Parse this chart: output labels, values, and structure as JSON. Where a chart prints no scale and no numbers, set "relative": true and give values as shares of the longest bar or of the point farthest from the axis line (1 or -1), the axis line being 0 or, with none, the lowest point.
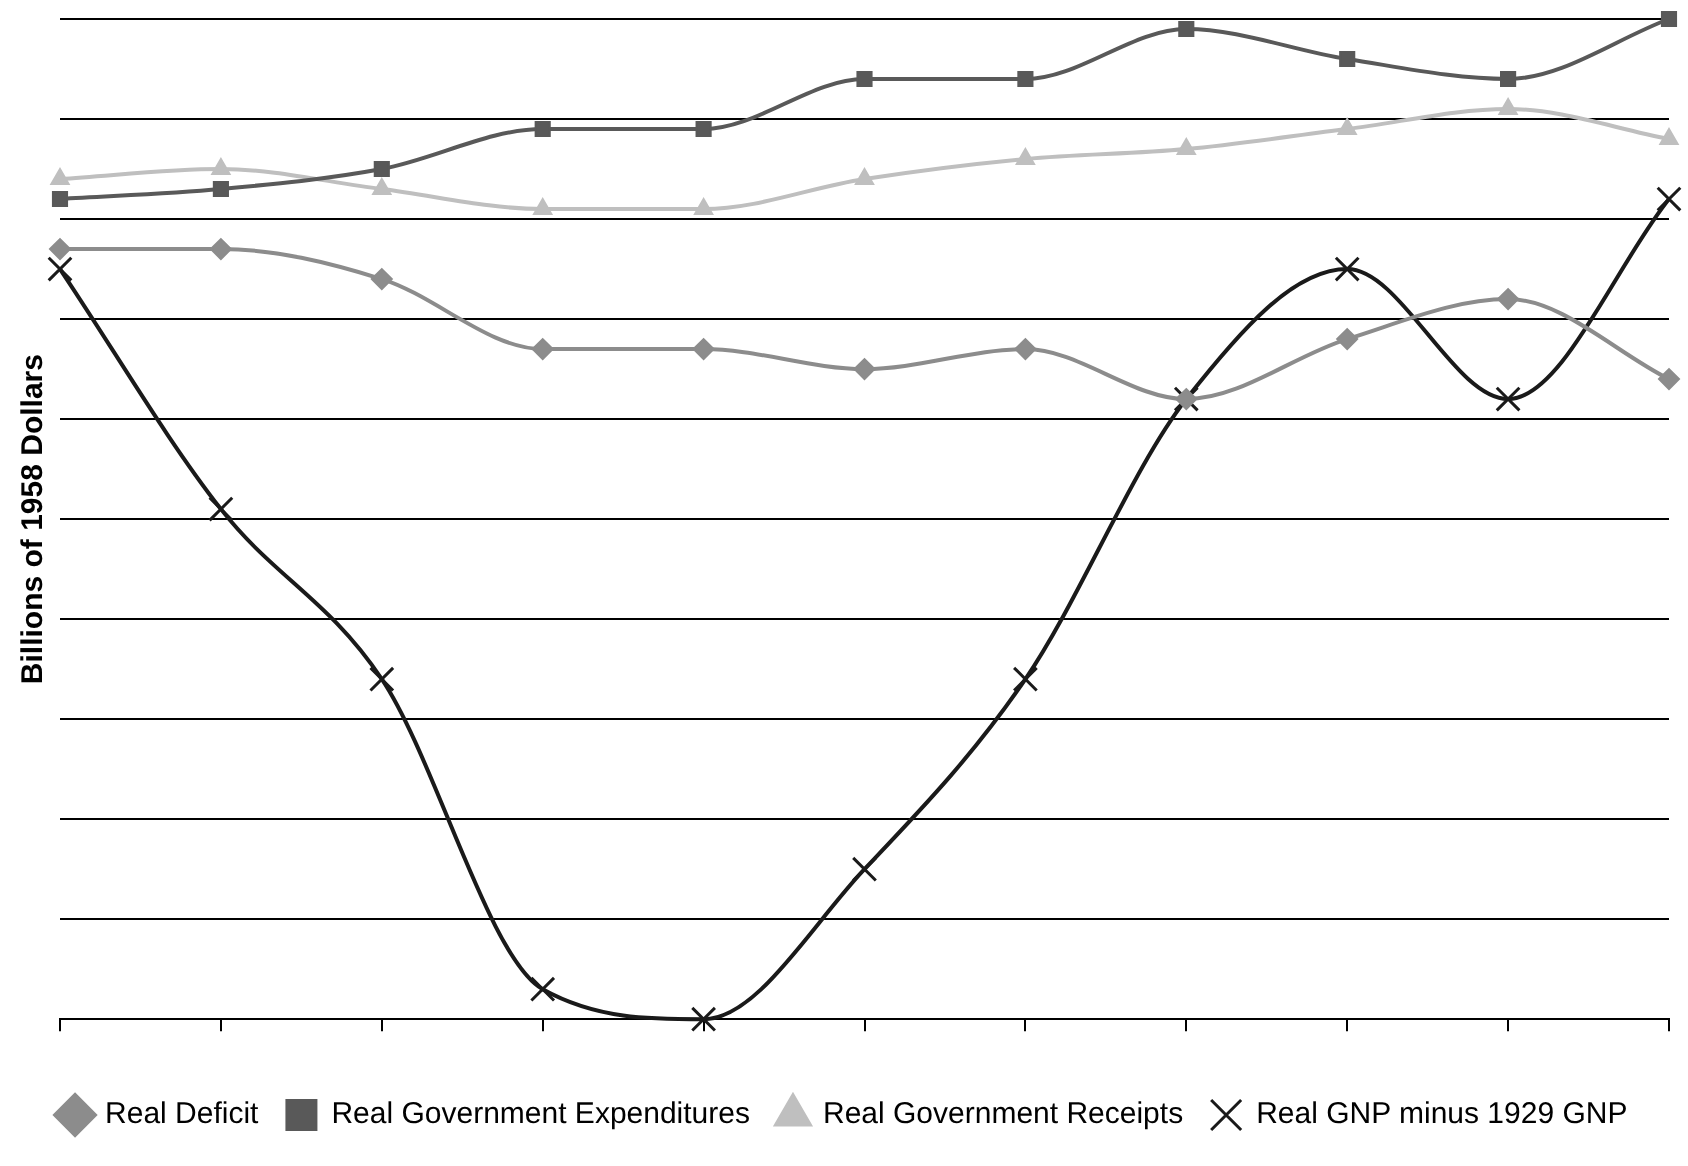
{
  "chart_data": {
    "type": "line",
    "ylabel": "Billions of 1958 Dollars",
    "relative": true,
    "grid": "y",
    "legend": "bottom",
    "categories": [
      null,
      null,
      null,
      null,
      null,
      null,
      null,
      null,
      null,
      null,
      null
    ],
    "series": [
      {
        "name": "Real Deficit",
        "color": "#8c8c8c",
        "marker": "diamond",
        "values": [
          0.77,
          0.77,
          0.74,
          0.67,
          0.67,
          0.65,
          0.67,
          0.62,
          0.68,
          0.72,
          0.64
        ]
      },
      {
        "name": "Real Government Expenditures",
        "color": "#595959",
        "marker": "square",
        "values": [
          0.82,
          0.83,
          0.85,
          0.89,
          0.89,
          0.94,
          0.94,
          0.99,
          0.96,
          0.94,
          1
        ]
      },
      {
        "name": "Real Government Receipts",
        "color": "#bfbfbf",
        "marker": "triangle",
        "values": [
          0.84,
          0.85,
          0.83,
          0.81,
          0.81,
          0.84,
          0.86,
          0.87,
          0.89,
          0.91,
          0.88
        ]
      },
      {
        "name": "Real GNP minus 1929 GNP",
        "color": "#1a1a1a",
        "marker": "cross",
        "values": [
          0.75,
          0.51,
          0.34,
          0.03,
          0,
          0.15,
          0.34,
          0.62,
          0.75,
          0.62,
          0.82
        ]
      }
    ]
  }
}
